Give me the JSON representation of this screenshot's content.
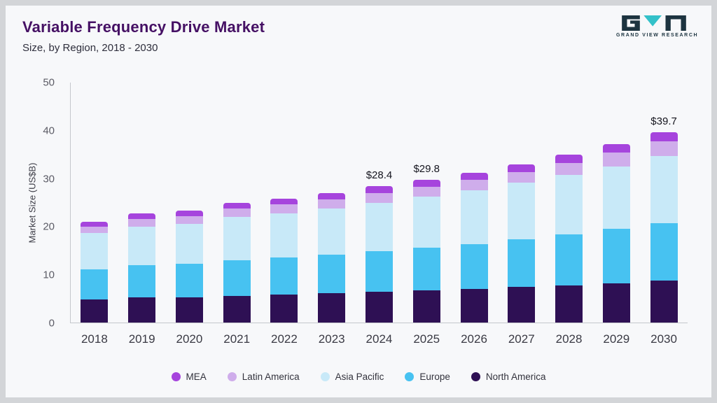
{
  "header": {
    "title": "Variable Frequency Drive Market",
    "subtitle": "Size, by Region, 2018 - 2030"
  },
  "logo": {
    "text": "GRAND VIEW RESEARCH"
  },
  "colors": {
    "mea": "#a644dd",
    "latin_america": "#cfadeb",
    "asia_pacific": "#c8e9f8",
    "europe": "#47c2f1",
    "north_america": "#2e1054",
    "title_text": "#451064",
    "logo_teal": "#33c1c9",
    "logo_dark": "#1d3440",
    "axis_line": "#c4c7cc"
  },
  "chart_data": {
    "type": "bar",
    "stacked": true,
    "title": "Variable Frequency Drive Market Size, by Region, 2018 - 2030",
    "xlabel": "",
    "ylabel": "Market Size (US$B)",
    "ylim": [
      0,
      50
    ],
    "yticks": [
      0,
      10,
      20,
      30,
      40,
      50
    ],
    "grid": false,
    "legend_position": "bottom",
    "categories": [
      "2018",
      "2019",
      "2020",
      "2021",
      "2022",
      "2023",
      "2024",
      "2025",
      "2026",
      "2027",
      "2028",
      "2029",
      "2030"
    ],
    "series": [
      {
        "name": "North America",
        "key": "north_america",
        "values": [
          4.8,
          5.2,
          5.3,
          5.6,
          5.8,
          6.1,
          6.4,
          6.7,
          7.0,
          7.4,
          7.8,
          8.2,
          8.7
        ]
      },
      {
        "name": "Europe",
        "key": "europe",
        "values": [
          6.3,
          6.8,
          7.0,
          7.4,
          7.8,
          8.1,
          8.4,
          8.9,
          9.4,
          9.9,
          10.5,
          11.3,
          12.0
        ]
      },
      {
        "name": "Asia Pacific",
        "key": "asia_pacific",
        "values": [
          7.5,
          8.0,
          8.2,
          9.0,
          9.2,
          9.6,
          10.2,
          10.6,
          11.1,
          11.8,
          12.5,
          13.0,
          14.0
        ]
      },
      {
        "name": "Latin America",
        "key": "latin_america",
        "values": [
          1.4,
          1.6,
          1.6,
          1.7,
          1.8,
          1.9,
          2.0,
          2.1,
          2.2,
          2.3,
          2.5,
          2.9,
          3.1
        ]
      },
      {
        "name": "MEA",
        "key": "mea",
        "values": [
          1.0,
          1.1,
          1.2,
          1.2,
          1.2,
          1.3,
          1.4,
          1.5,
          1.5,
          1.6,
          1.7,
          1.8,
          1.9
        ]
      }
    ],
    "annotations": {
      "2024": "$28.4",
      "2025": "$29.8",
      "2030": "$39.7"
    },
    "legend": [
      {
        "label": "MEA",
        "key": "mea"
      },
      {
        "label": "Latin America",
        "key": "latin_america"
      },
      {
        "label": "Asia Pacific",
        "key": "asia_pacific"
      },
      {
        "label": "Europe",
        "key": "europe"
      },
      {
        "label": "North America",
        "key": "north_america"
      }
    ]
  }
}
